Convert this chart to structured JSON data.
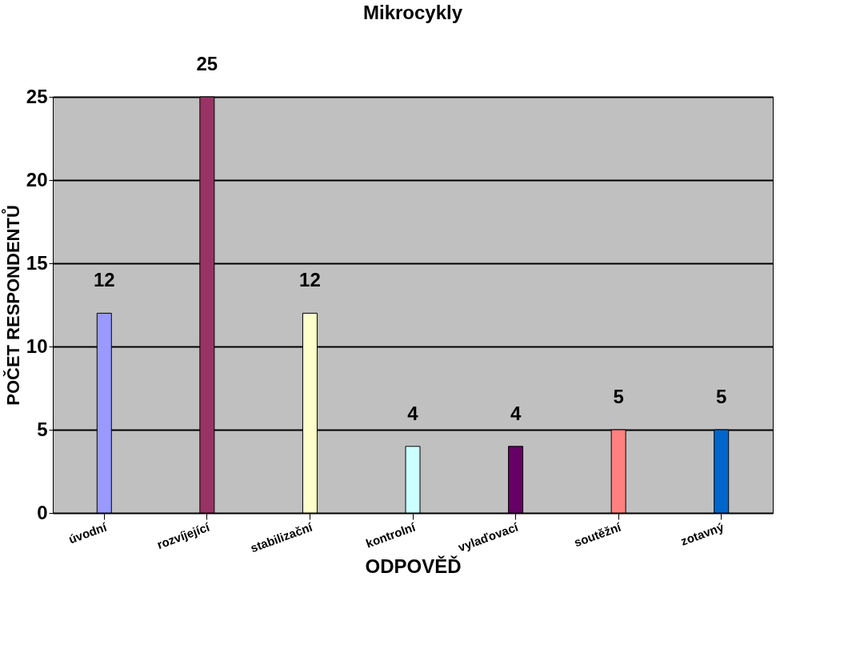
{
  "chart_data": {
    "type": "bar",
    "title": "Mikrocykly",
    "xlabel": "ODPOVĚĎ",
    "ylabel": "POČET RESPONDENTŮ",
    "categories": [
      "úvodní",
      "rozvíjející",
      "stabilizační",
      "kontrolní",
      "vylaďovací",
      "soutěžní",
      "zotavný"
    ],
    "values": [
      12,
      25,
      12,
      4,
      4,
      5,
      5
    ],
    "colors": [
      "#9999ff",
      "#993366",
      "#ffffcc",
      "#ccffff",
      "#660066",
      "#ff8080",
      "#0066cc"
    ],
    "ylim": [
      0,
      25
    ],
    "yticks": [
      0,
      5,
      10,
      15,
      20,
      25
    ],
    "grid": "y",
    "data_labels": true
  }
}
